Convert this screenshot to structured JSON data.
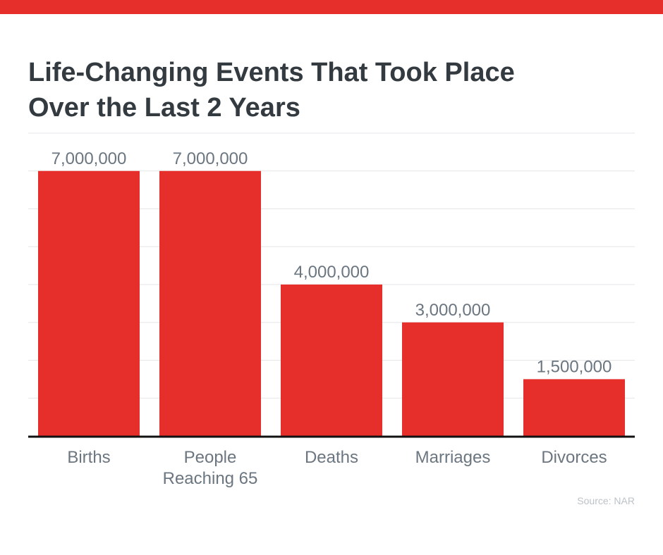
{
  "colors": {
    "accent": "#e62e2a",
    "title": "#333a40",
    "label": "#6b7680",
    "grid": "#e4e6e8",
    "axis": "#111111",
    "source": "#bcc3c9"
  },
  "header": {
    "title_line1": "Life-Changing Events That Took Place",
    "title_line2": "Over the Last 2 Years"
  },
  "footer": {
    "source": "Source: NAR"
  },
  "chart_data": {
    "type": "bar",
    "title": "Life-Changing Events That Took Place Over the Last 2 Years",
    "categories": [
      [
        "Births"
      ],
      [
        "People",
        "Reaching 65"
      ],
      [
        "Deaths"
      ],
      [
        "Marriages"
      ],
      [
        "Divorces"
      ]
    ],
    "values": [
      7000000,
      7000000,
      4000000,
      3000000,
      1500000
    ],
    "data_labels": [
      "7,000,000",
      "7,000,000",
      "4,000,000",
      "3,000,000",
      "1,500,000"
    ],
    "xlabel": "",
    "ylabel": "",
    "ylim": [
      0,
      8000000
    ],
    "grid": true,
    "gridline_step": 1000000,
    "legend": "none"
  }
}
